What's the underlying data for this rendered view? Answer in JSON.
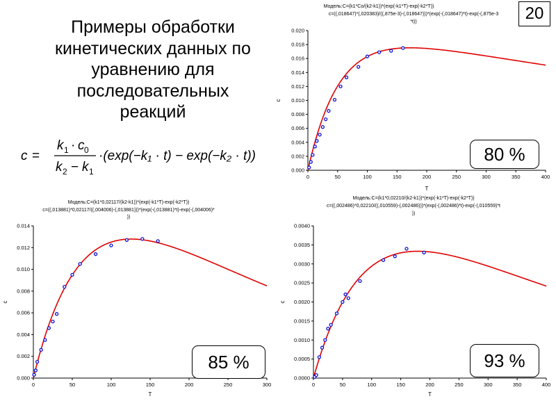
{
  "slide": {
    "title_lines": [
      "Примеры обработки",
      "кинетических данных по",
      "уравнению для",
      "последовательных",
      "реакций"
    ],
    "page_number": "20",
    "formula": {
      "lhs": "c",
      "num_k": "k",
      "num_k_sub": "1",
      "num_dot": "·",
      "num_c": "c",
      "num_c_sub": "0",
      "den_k2": "k",
      "den_k2_sub": "2",
      "den_minus": "−",
      "den_k1": "k",
      "den_k1_sub": "1",
      "rhs": "·(exp(−k₁ · t) − exp(−k₂ · t))"
    }
  },
  "chart_data": [
    {
      "type": "scatter",
      "panel": "top-right",
      "model_line1": "Модель:C=(k1*Co/(k2-k1))*(exp(-k1*T)-exp(-k2*T))",
      "model_line2": "c=((,018647)*(,020383)/((,875e-3)-(,018647)))*(exp(-(,018647)*t)-exp(-(,875e-3",
      "model_line3": "*t))",
      "xlabel": "T",
      "ylabel": "c",
      "xlim": [
        0,
        400
      ],
      "ylim": [
        0,
        0.02
      ],
      "xticks": [
        "0",
        "50",
        "100",
        "150",
        "200",
        "250",
        "300",
        "350",
        "400"
      ],
      "yticks": [
        "0.000",
        "0.002",
        "0.004",
        "0.006",
        "0.008",
        "0.010",
        "0.012",
        "0.014",
        "0.016",
        "0.018",
        "0.020"
      ],
      "points": [
        [
          2,
          0.0004
        ],
        [
          5,
          0.0012
        ],
        [
          8,
          0.0022
        ],
        [
          12,
          0.0034
        ],
        [
          15,
          0.0042
        ],
        [
          20,
          0.0051
        ],
        [
          25,
          0.0062
        ],
        [
          30,
          0.0073
        ],
        [
          35,
          0.0085
        ],
        [
          45,
          0.0101
        ],
        [
          55,
          0.012
        ],
        [
          65,
          0.0133
        ],
        [
          85,
          0.0148
        ],
        [
          100,
          0.0163
        ],
        [
          120,
          0.0169
        ],
        [
          140,
          0.0171
        ],
        [
          160,
          0.0175
        ]
      ],
      "curve": {
        "k1": 0.018647,
        "k2": 0.000875,
        "c0": 0.020383
      },
      "accuracy": "80 %"
    },
    {
      "type": "scatter",
      "panel": "bottom-left",
      "model_line1": "Модель:C=(k1*0,02117/(k2-k1))*(exp(-k1*T)-exp(-k2*T))",
      "model_line2": "c=((,013881)*0,02117/((,004006)-(,013881)))*(exp(-(,013881)*t)-exp(-(,004006)*",
      "model_line3": "))",
      "xlabel": "T",
      "ylabel": "c",
      "xlim": [
        0,
        300
      ],
      "ylim": [
        0,
        0.014
      ],
      "xticks": [
        "0",
        "50",
        "100",
        "150",
        "200",
        "250",
        "300"
      ],
      "yticks": [
        "0.000",
        "0.002",
        "0.004",
        "0.006",
        "0.008",
        "0.010",
        "0.012",
        "0.014"
      ],
      "points": [
        [
          1,
          0.0003
        ],
        [
          3,
          0.0007
        ],
        [
          5,
          0.0015
        ],
        [
          10,
          0.0026
        ],
        [
          15,
          0.0035
        ],
        [
          20,
          0.0046
        ],
        [
          25,
          0.0052
        ],
        [
          30,
          0.0059
        ],
        [
          40,
          0.0084
        ],
        [
          50,
          0.0095
        ],
        [
          60,
          0.0105
        ],
        [
          80,
          0.0114
        ],
        [
          100,
          0.0122
        ],
        [
          120,
          0.0127
        ],
        [
          140,
          0.0128
        ],
        [
          160,
          0.0126
        ]
      ],
      "curve": {
        "k1": 0.013881,
        "k2": 0.004006,
        "c0": 0.02117
      },
      "accuracy": "85 %"
    },
    {
      "type": "scatter",
      "panel": "bottom-right",
      "model_line1": "Модель:C=(k1*0,02210/(k2-k1))*(exp(-k1*T)-exp(-k2*T))",
      "model_line2": "c=((,002486)*0,02210/((,010559)-(,002486)))*(exp(-(,002486)*t)-exp(-(,010559)*t",
      "model_line3": "))",
      "xlabel": "T",
      "ylabel": "c",
      "xlim": [
        0,
        400
      ],
      "ylim": [
        0,
        0.004
      ],
      "xticks": [
        "0",
        "50",
        "100",
        "150",
        "200",
        "250",
        "300",
        "350",
        "400"
      ],
      "yticks": [
        "0.0000",
        "0.0005",
        "0.0010",
        "0.0015",
        "0.0020",
        "0.0025",
        "0.0030",
        "0.0035",
        "0.0040"
      ],
      "points": [
        [
          2,
          3e-05
        ],
        [
          5,
          8e-05
        ],
        [
          10,
          0.00055
        ],
        [
          15,
          0.0008
        ],
        [
          20,
          0.001
        ],
        [
          25,
          0.0013
        ],
        [
          30,
          0.0014
        ],
        [
          40,
          0.0017
        ],
        [
          50,
          0.002
        ],
        [
          55,
          0.0022
        ],
        [
          60,
          0.0021
        ],
        [
          80,
          0.00255
        ],
        [
          120,
          0.0031
        ],
        [
          140,
          0.0032
        ],
        [
          160,
          0.0034
        ],
        [
          190,
          0.0033
        ]
      ],
      "curve": {
        "k1": 0.002486,
        "k2": 0.010559,
        "c0": 0.0221
      },
      "accuracy": "93 %"
    }
  ],
  "colors": {
    "curve": "#e00000",
    "points": "#1010d0",
    "axes": "#000000",
    "text": "#000000"
  }
}
